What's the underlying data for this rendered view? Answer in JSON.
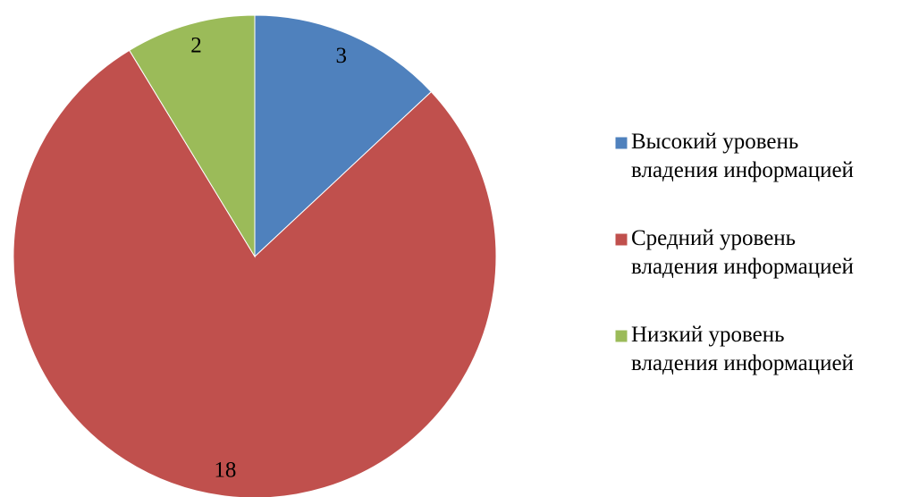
{
  "chart_data": {
    "type": "pie",
    "categories": [
      "Высокий уровень владения информацией",
      "Средний уровень владения информацией",
      "Низкий уровень владения информацией"
    ],
    "values": [
      3,
      18,
      2
    ],
    "colors": [
      "#4f81bd",
      "#c0504d",
      "#9bbb59"
    ],
    "legend": "right"
  }
}
